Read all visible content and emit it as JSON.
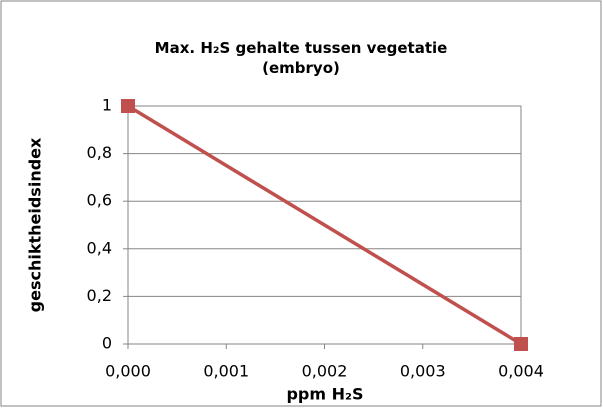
{
  "chart_data": {
    "type": "line",
    "title": "Max. H₂S gehalte tussen vegetatie (embryo)",
    "x_label": "ppm H₂S",
    "y_label": "geschiktheidsindex",
    "x": [
      0,
      0.004
    ],
    "series": [
      {
        "name": "geschiktheidsindex",
        "color": "#c0504d",
        "values": [
          1,
          0
        ]
      }
    ],
    "xlim": [
      0,
      0.004
    ],
    "xticks": [
      {
        "value": 0,
        "label": "0,000"
      },
      {
        "value": 0.001,
        "label": "0,001"
      },
      {
        "value": 0.002,
        "label": "0,002"
      },
      {
        "value": 0.003,
        "label": "0,003"
      },
      {
        "value": 0.004,
        "label": "0,004"
      }
    ],
    "ylim": [
      0,
      1
    ],
    "yticks": [
      0,
      {
        "value": 0.2,
        "label": "0,2"
      },
      {
        "value": 0.4,
        "label": "0,4"
      },
      {
        "value": 0.6,
        "label": "0,6"
      },
      {
        "value": 0.8,
        "label": "0,8"
      },
      1
    ],
    "grid": true
  }
}
